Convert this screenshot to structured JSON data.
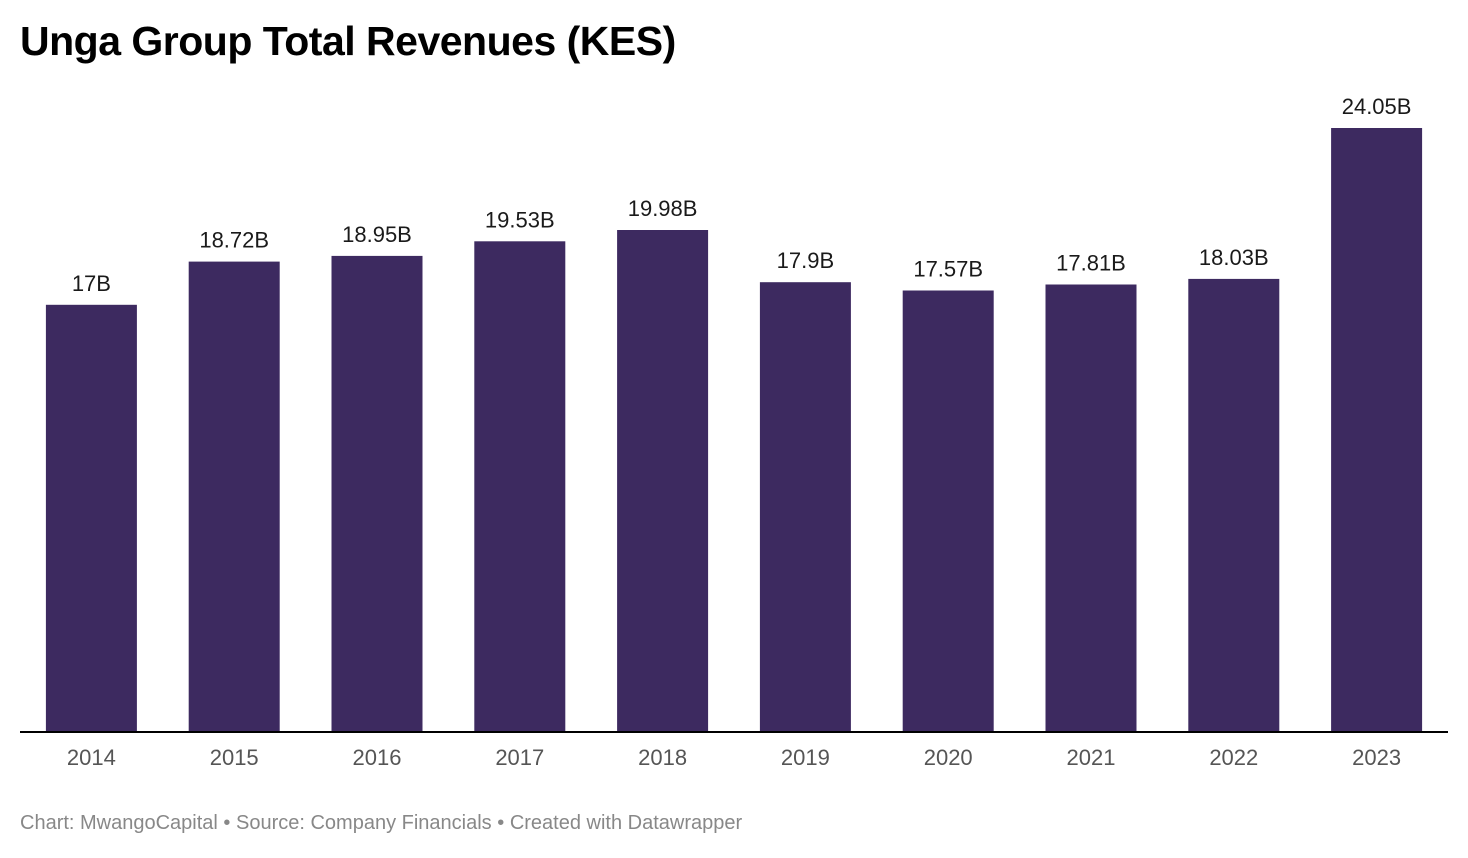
{
  "title": "Unga Group Total Revenues (KES)",
  "footer": {
    "chart_credit": "Chart: MwangoCapital",
    "separator": " • ",
    "source": "Source: Company Financials",
    "created_with": "Created with Datawrapper"
  },
  "colors": {
    "bar": "#3d2a60",
    "axis": "#000000"
  },
  "chart_data": {
    "type": "bar",
    "title": "Unga Group Total Revenues (KES)",
    "xlabel": "",
    "ylabel": "",
    "categories": [
      "2014",
      "2015",
      "2016",
      "2017",
      "2018",
      "2019",
      "2020",
      "2021",
      "2022",
      "2023"
    ],
    "values": [
      17,
      18.72,
      18.95,
      19.53,
      19.98,
      17.9,
      17.57,
      17.81,
      18.03,
      24.05
    ],
    "value_labels": [
      "17B",
      "18.72B",
      "18.95B",
      "19.53B",
      "19.98B",
      "17.9B",
      "17.57B",
      "17.81B",
      "18.03B",
      "24.05B"
    ],
    "unit": "B",
    "ylim": [
      0,
      24.05
    ],
    "grid": false,
    "legend": "none"
  }
}
